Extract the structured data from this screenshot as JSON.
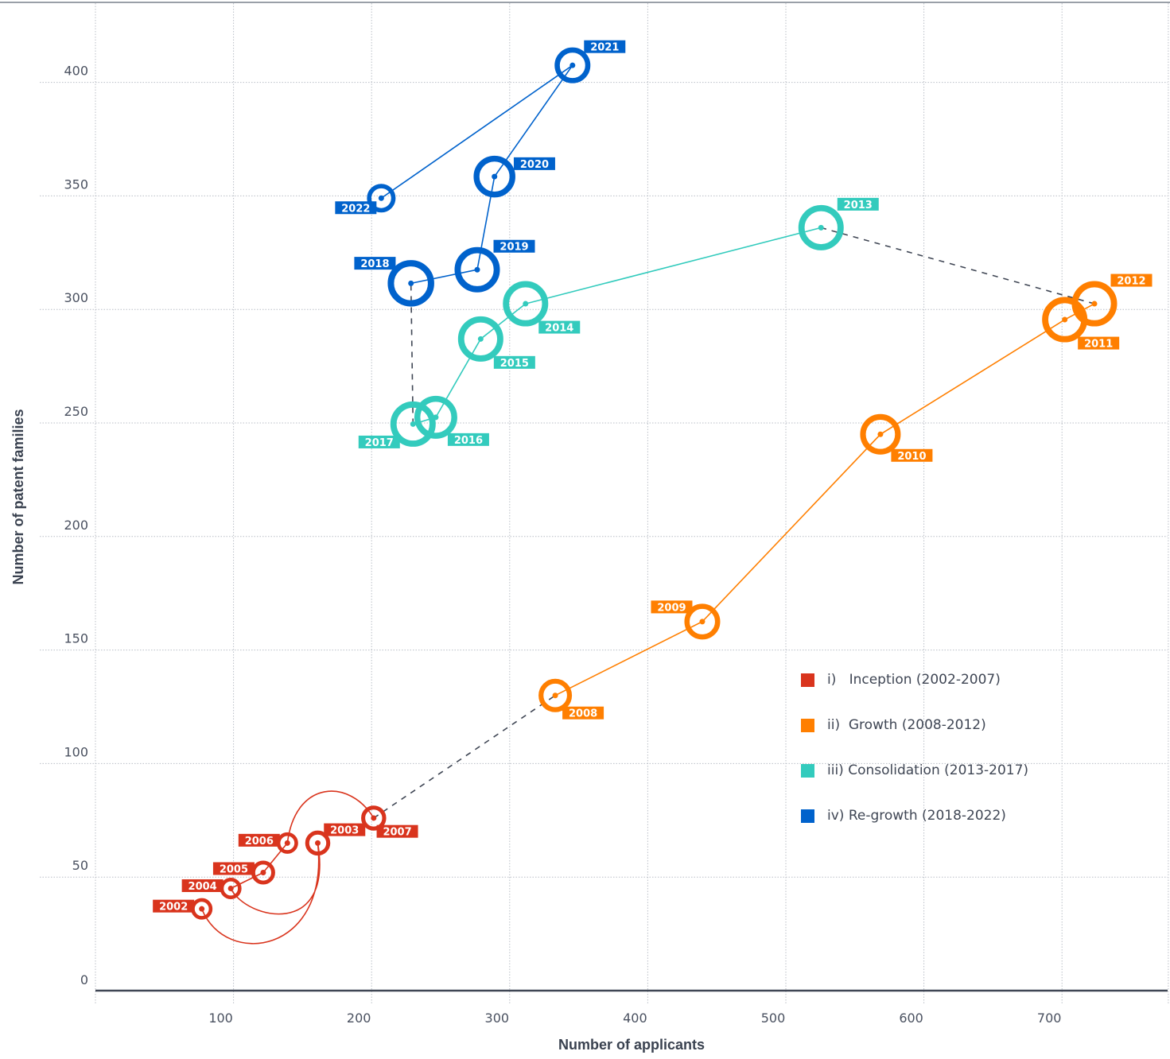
{
  "chart_data": {
    "type": "scatter",
    "subtype": "connected-bubble",
    "title": "",
    "xlabel": "Number of applicants",
    "ylabel": "Number of patent families",
    "xlim": [
      0,
      777
    ],
    "ylim": [
      0,
      420
    ],
    "x_ticks": [
      100,
      200,
      300,
      400,
      500,
      600,
      700
    ],
    "x_gridlines": [
      0,
      100,
      200,
      300,
      400,
      500,
      600,
      700,
      777
    ],
    "y_ticks": [
      0,
      50,
      100,
      150,
      200,
      250,
      300,
      350,
      400
    ],
    "grid": true,
    "legend_position": "bottom-right",
    "series": [
      {
        "name": "i)   Inception (2002-2007)",
        "color": "#d9341d",
        "points": [
          {
            "year": "2002",
            "x": 77,
            "y": 36,
            "size": 1,
            "label_pos": "left"
          },
          {
            "year": "2003",
            "x": 161,
            "y": 65,
            "size": 1.3,
            "label_pos": "top-right"
          },
          {
            "year": "2004",
            "x": 98,
            "y": 45,
            "size": 1,
            "label_pos": "left"
          },
          {
            "year": "2005",
            "x": 121.5,
            "y": 52,
            "size": 1.2,
            "label_pos": "left"
          },
          {
            "year": "2006",
            "x": 139,
            "y": 65,
            "size": 1,
            "label_pos": "left"
          },
          {
            "year": "2007",
            "x": 201.5,
            "y": 76,
            "size": 1.3,
            "label_pos": "bottom-right"
          }
        ]
      },
      {
        "name": "ii)  Growth (2008-2012)",
        "color": "#ff7f00",
        "points": [
          {
            "year": "2008",
            "x": 333,
            "y": 130,
            "size": 2,
            "label_pos": "bottom-right"
          },
          {
            "year": "2009",
            "x": 439.5,
            "y": 162.5,
            "size": 2.2,
            "label_pos": "top-left"
          },
          {
            "year": "2010",
            "x": 568.5,
            "y": 245,
            "size": 2.6,
            "label_pos": "bottom-right"
          },
          {
            "year": "2011",
            "x": 702,
            "y": 295.5,
            "size": 3,
            "label_pos": "bottom-right"
          },
          {
            "year": "2012",
            "x": 723.5,
            "y": 302.5,
            "size": 3,
            "label_pos": "top-right"
          }
        ]
      },
      {
        "name": "iii) Consolidation (2013-2017)",
        "color": "#33cbbd",
        "points": [
          {
            "year": "2013",
            "x": 525.5,
            "y": 336,
            "size": 3,
            "label_pos": "top-right"
          },
          {
            "year": "2014",
            "x": 311.5,
            "y": 302.5,
            "size": 3,
            "label_pos": "bottom-right"
          },
          {
            "year": "2015",
            "x": 279,
            "y": 287,
            "size": 3,
            "label_pos": "bottom-right"
          },
          {
            "year": "2016",
            "x": 246.5,
            "y": 252.5,
            "size": 2.8,
            "label_pos": "bottom-right"
          },
          {
            "year": "2017",
            "x": 230,
            "y": 249.5,
            "size": 3,
            "label_pos": "bottom-left"
          }
        ]
      },
      {
        "name": "iv) Re-growth (2018-2022)",
        "color": "#0062cc",
        "points": [
          {
            "year": "2018",
            "x": 228.5,
            "y": 311.5,
            "size": 3.1,
            "label_pos": "top-left"
          },
          {
            "year": "2019",
            "x": 276.5,
            "y": 317.5,
            "size": 3,
            "label_pos": "top-right"
          },
          {
            "year": "2020",
            "x": 289,
            "y": 358.5,
            "size": 2.7,
            "label_pos": "right"
          },
          {
            "year": "2021",
            "x": 345.5,
            "y": 407.5,
            "size": 2.2,
            "label_pos": "top-right"
          },
          {
            "year": "2022",
            "x": 207,
            "y": 349,
            "size": 1.6,
            "label_pos": "bottom-left"
          }
        ]
      }
    ],
    "phase_connectors": [
      {
        "from": "2007",
        "to": "2008",
        "style": "dashed"
      },
      {
        "from": "2012",
        "to": "2013",
        "style": "dashed"
      },
      {
        "from": "2017",
        "to": "2018",
        "style": "dashed"
      }
    ]
  },
  "legend": {
    "items": [
      {
        "label": "i)   Inception (2002-2007)",
        "color": "#d9341d"
      },
      {
        "label": "ii)  Growth (2008-2012)",
        "color": "#ff7f00"
      },
      {
        "label": "iii) Consolidation (2013-2017)",
        "color": "#33cbbd"
      },
      {
        "label": "iv) Re-growth (2018-2022)",
        "color": "#0062cc"
      }
    ]
  },
  "colors": {
    "axis": "#3f4654",
    "grid": "#b9bec6",
    "connector": "#3f4654"
  }
}
